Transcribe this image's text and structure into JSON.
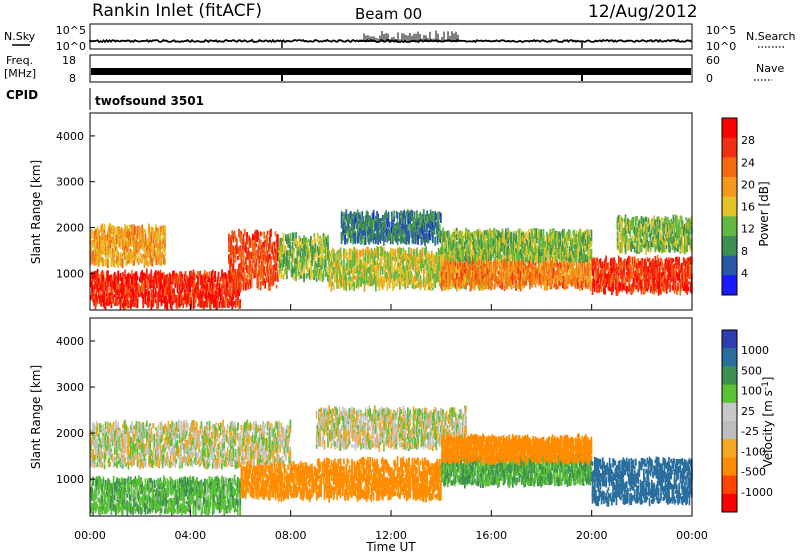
{
  "header": {
    "station": "Rankin Inlet (fitACF)",
    "beam": "Beam 00",
    "date": "12/Aug/2012"
  },
  "top_strips": {
    "nsky_label": "N.Sky",
    "nsky_top": "10^5",
    "nsky_bottom": "10^0",
    "nsearch_label": "N.Search",
    "nsearch_top": "10^5",
    "nsearch_bottom": "10^0",
    "freq_label_1": "Freq.",
    "freq_label_2": "[MHz]",
    "freq_top": "18",
    "freq_bottom": "8",
    "nave_label": "Nave",
    "nave_top": "60",
    "nave_bottom": "0",
    "cpid_label": "CPID",
    "cpid_value": "twofsound 3501"
  },
  "colors": {
    "power_scale": [
      "#1a1aff",
      "#2a58a8",
      "#3f8f52",
      "#63b841",
      "#e3c22a",
      "#f39a1c",
      "#f36a12",
      "#f03010",
      "#ff0000"
    ],
    "velocity_scale": [
      "#ff0000",
      "#ff4500",
      "#ff8c00",
      "#f5a623",
      "#bdbdbd",
      "#c8c8c8",
      "#5bc236",
      "#3f8f52",
      "#2a6e9e",
      "#2b3fb0"
    ],
    "background": "#ffffff"
  },
  "chart_data": [
    {
      "type": "heatmap",
      "title": "",
      "xlabel": "",
      "ylabel": "Slant Range [km]",
      "x_ticks": [
        "00:00",
        "04:00",
        "08:00",
        "12:00",
        "16:00",
        "20:00",
        "00:00"
      ],
      "y_ticks": [
        "1000",
        "2000",
        "3000",
        "4000"
      ],
      "ylim": [
        200,
        4500
      ],
      "xlim_hours": [
        0,
        24
      ],
      "colorbar_label": "Power [dB]",
      "colorbar_ticks": [
        "4",
        "8",
        "12",
        "16",
        "20",
        "24",
        "28"
      ],
      "colorbar_range": [
        0,
        30
      ],
      "scatter_bands": [
        {
          "t_start": 0,
          "t_end": 6,
          "range_low": 300,
          "range_high": 1000,
          "value": 26
        },
        {
          "t_start": 0,
          "t_end": 3,
          "range_low": 1200,
          "range_high": 2000,
          "value": 18
        },
        {
          "t_start": 5.5,
          "t_end": 7.5,
          "range_low": 700,
          "range_high": 1900,
          "value": 24
        },
        {
          "t_start": 7.5,
          "t_end": 9.5,
          "range_low": 900,
          "range_high": 1800,
          "value": 12
        },
        {
          "t_start": 9.5,
          "t_end": 16,
          "range_low": 700,
          "range_high": 1500,
          "value": 14
        },
        {
          "t_start": 10,
          "t_end": 14,
          "range_low": 1700,
          "range_high": 2300,
          "value": 7
        },
        {
          "t_start": 14,
          "t_end": 20,
          "range_low": 700,
          "range_high": 1300,
          "value": 20
        },
        {
          "t_start": 14,
          "t_end": 20,
          "range_low": 1300,
          "range_high": 1900,
          "value": 12
        },
        {
          "t_start": 20,
          "t_end": 24,
          "range_low": 600,
          "range_high": 1300,
          "value": 25
        },
        {
          "t_start": 21,
          "t_end": 24,
          "range_low": 1500,
          "range_high": 2200,
          "value": 12
        }
      ]
    },
    {
      "type": "heatmap",
      "title": "",
      "xlabel": "Time UT",
      "ylabel": "Slant Range [km]",
      "x_ticks": [
        "00:00",
        "04:00",
        "08:00",
        "12:00",
        "16:00",
        "20:00",
        "00:00"
      ],
      "y_ticks": [
        "1000",
        "2000",
        "3000",
        "4000"
      ],
      "ylim": [
        200,
        4500
      ],
      "xlim_hours": [
        0,
        24
      ],
      "colorbar_label": "Velocity [m s^-1]",
      "colorbar_ticks": [
        "1000",
        "500",
        "100",
        "25",
        "-25",
        "-100",
        "-500",
        "-1000"
      ],
      "scatter_bands": [
        {
          "t_start": 0,
          "t_end": 6,
          "range_low": 300,
          "range_high": 1000,
          "value": 80
        },
        {
          "t_start": 0,
          "t_end": 8,
          "range_low": 1300,
          "range_high": 2200,
          "value": 0
        },
        {
          "t_start": 6,
          "t_end": 9,
          "range_low": 600,
          "range_high": 1300,
          "value": -150
        },
        {
          "t_start": 9,
          "t_end": 14,
          "range_low": 600,
          "range_high": 1400,
          "value": -300
        },
        {
          "t_start": 9,
          "t_end": 15,
          "range_low": 1700,
          "range_high": 2500,
          "value": 0
        },
        {
          "t_start": 14,
          "t_end": 20,
          "range_low": 900,
          "range_high": 1500,
          "value": 100
        },
        {
          "t_start": 14,
          "t_end": 20,
          "range_low": 1400,
          "range_high": 1900,
          "value": -200
        },
        {
          "t_start": 20,
          "t_end": 24,
          "range_low": 500,
          "range_high": 1400,
          "value": 600
        }
      ]
    }
  ]
}
